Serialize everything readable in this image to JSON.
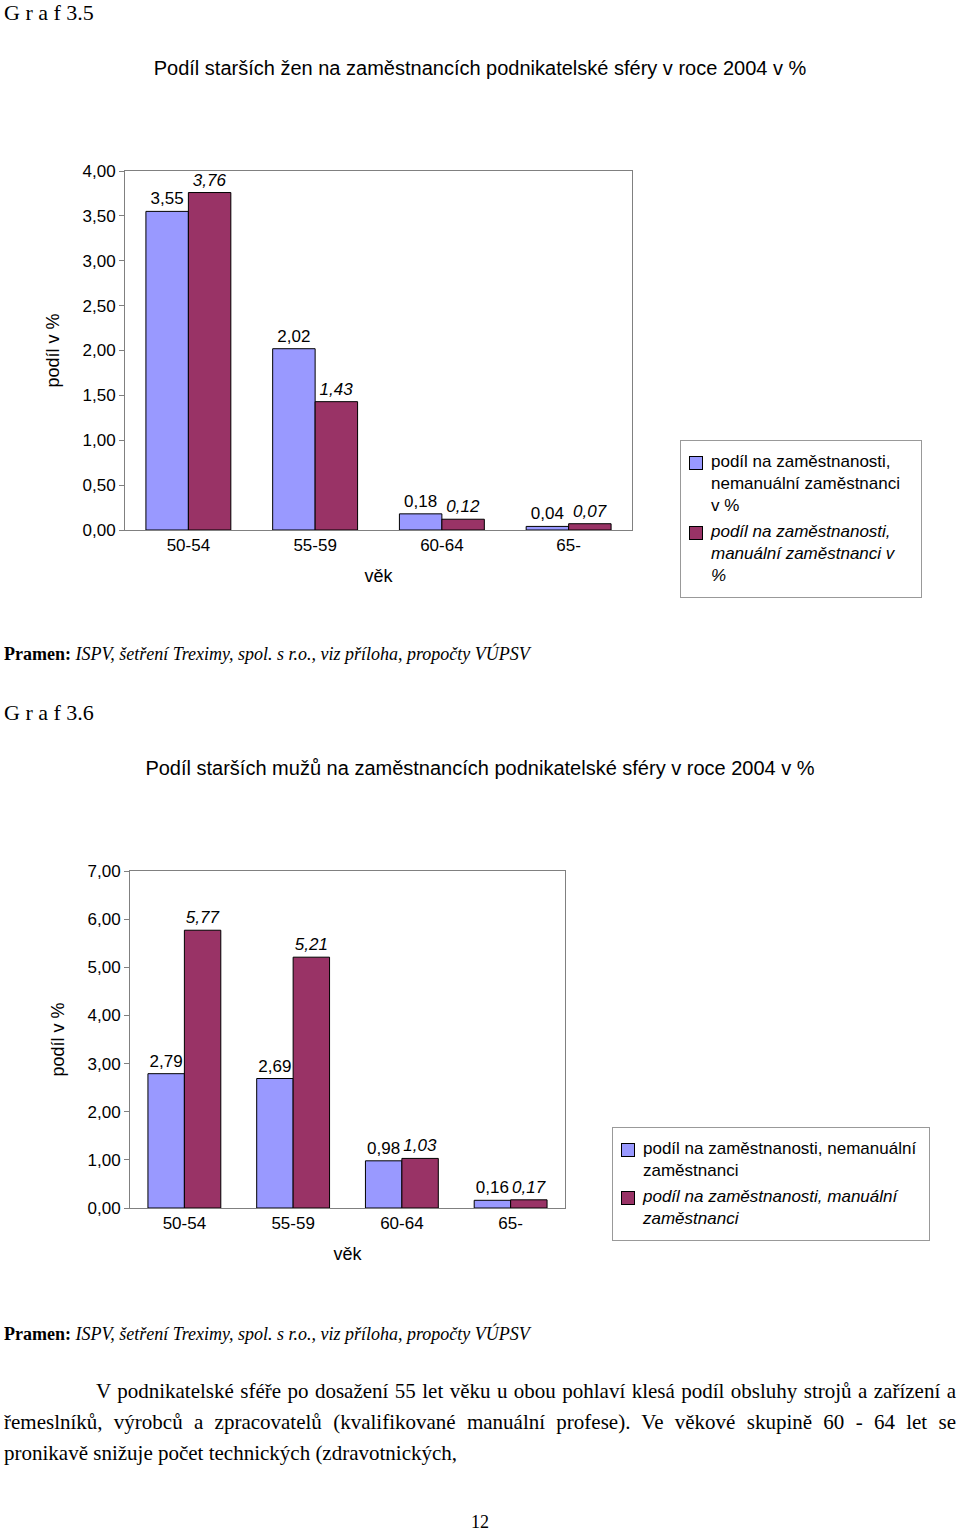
{
  "chart_data": [
    {
      "type": "bar",
      "label": "G r a f 3.5",
      "title": "Podíl starších žen na zaměstnancích podnikatelské sféry v roce 2004 v %",
      "x_label": "věk",
      "y_label": "podíl v %",
      "categories": [
        "50-54",
        "55-59",
        "60-64",
        "65-"
      ],
      "series": [
        {
          "name": "podíl na zaměstnanosti, nemanuální zaměstnanci v %",
          "color": "#9999ff",
          "values": [
            3.55,
            2.02,
            0.18,
            0.04
          ],
          "value_labels": [
            "3,55",
            "2,02",
            "0,18",
            "0,04"
          ]
        },
        {
          "name": "podíl na zaměstnanosti, manuální zaměstnanci v %",
          "color": "#993366",
          "values": [
            3.76,
            1.43,
            0.12,
            0.07
          ],
          "value_labels": [
            "3,76",
            "1,43",
            "0,12",
            "0,07"
          ]
        }
      ],
      "ylim": [
        0,
        4
      ],
      "yticks": [
        {
          "value": 0,
          "label": "0,00"
        },
        {
          "value": 0.5,
          "label": "0,50"
        },
        {
          "value": 1,
          "label": "1,00"
        },
        {
          "value": 1.5,
          "label": "1,50"
        },
        {
          "value": 2,
          "label": "2,00"
        },
        {
          "value": 2.5,
          "label": "2,50"
        },
        {
          "value": 3,
          "label": "3,00"
        },
        {
          "value": 3.5,
          "label": "3,50"
        },
        {
          "value": 4,
          "label": "4,00"
        }
      ],
      "grid": false,
      "legend": "right",
      "data_labels": true,
      "source_label": "Pramen:",
      "source": "ISPV, šetření Treximy, spol. s r.o., viz příloha, propočty VÚPSV"
    },
    {
      "type": "bar",
      "label": "G r a f 3.6",
      "title": "Podíl starších mužů na zaměstnancích podnikatelské sféry v roce 2004 v %",
      "x_label": "věk",
      "y_label": "podíl v %",
      "categories": [
        "50-54",
        "55-59",
        "60-64",
        "65-"
      ],
      "series": [
        {
          "name": "podíl na zaměstnanosti, nemanuální zaměstnanci",
          "color": "#9999ff",
          "values": [
            2.79,
            2.69,
            0.98,
            0.16
          ],
          "value_labels": [
            "2,79",
            "2,69",
            "0,98",
            "0,16"
          ]
        },
        {
          "name": "podíl na zaměstnanosti, manuální zaměstnanci",
          "color": "#993366",
          "values": [
            5.77,
            5.21,
            1.03,
            0.17
          ],
          "value_labels": [
            "5,77",
            "5,21",
            "1,03",
            "0,17"
          ]
        }
      ],
      "ylim": [
        0,
        7
      ],
      "yticks": [
        {
          "value": 0,
          "label": "0,00"
        },
        {
          "value": 1,
          "label": "1,00"
        },
        {
          "value": 2,
          "label": "2,00"
        },
        {
          "value": 3,
          "label": "3,00"
        },
        {
          "value": 4,
          "label": "4,00"
        },
        {
          "value": 5,
          "label": "5,00"
        },
        {
          "value": 6,
          "label": "6,00"
        },
        {
          "value": 7,
          "label": "7,00"
        }
      ],
      "grid": false,
      "legend": "right",
      "data_labels": true,
      "source_label": "Pramen:",
      "source": "ISPV, šetření Treximy, spol. s r.o., viz příloha, propočty VÚPSV"
    }
  ],
  "paragraph": "V podnikatelské sféře po dosažení 55 let věku u obou pohlaví klesá podíl obsluhy strojů a zařízení a řemeslníků, výrobců a zpracovatelů (kvalifikované manuální profese). Ve věkové skupině 60 - 64 let se pronikavě snižuje počet technických (zdravotnických,",
  "page_number": "12"
}
